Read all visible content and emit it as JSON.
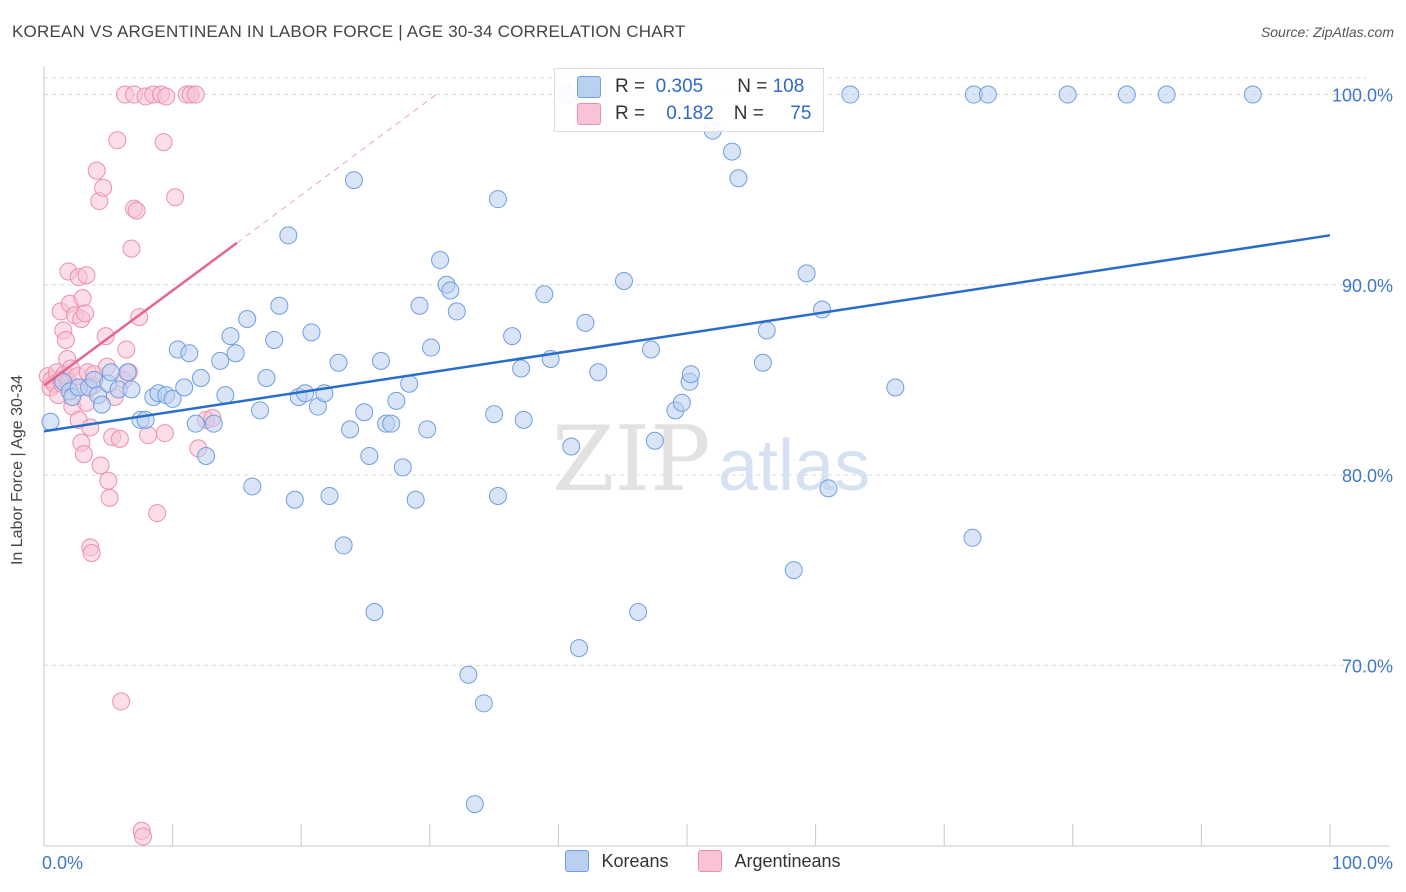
{
  "header": {
    "title": "KOREAN VS ARGENTINEAN IN LABOR FORCE | AGE 30-34 CORRELATION CHART",
    "source": "Source: ZipAtlas.com"
  },
  "legend": {
    "row1": {
      "r_label": "R =",
      "r_value": "0.305",
      "n_label": "N =",
      "n_value": "108"
    },
    "row2": {
      "r_label": "R =",
      "r_value": "0.182",
      "n_label": "N =",
      "n_value": "75"
    }
  },
  "watermark": {
    "zip": "ZIP",
    "atlas": "atlas"
  },
  "colors": {
    "blue_fill": "#b9d0f0",
    "blue_stroke": "#6f9fe0",
    "blue_line": "#2a6cca",
    "pink_fill": "#f8c3d4",
    "pink_stroke": "#ec8fae",
    "pink_line": "#e36690",
    "grid": "#d9d9d9",
    "tick_text": "#3e77c7"
  },
  "chart_data": {
    "type": "scatter",
    "title": "KOREAN VS ARGENTINEAN IN LABOR FORCE | AGE 30-34 CORRELATION CHART",
    "xlabel": "",
    "ylabel": "In Labor Force | Age 30-34",
    "xlim": [
      0,
      100
    ],
    "ylim": [
      60.5,
      101.5
    ],
    "x_tick_labels": [
      "0.0%",
      "100.0%"
    ],
    "y_ticks": [
      70,
      80,
      90,
      100
    ],
    "y_tick_labels": [
      "70.0%",
      "80.0%",
      "90.0%",
      "100.0%"
    ],
    "series": [
      {
        "name": "Koreans",
        "r": 0.305,
        "n": 108,
        "trend": {
          "x0": 0,
          "y0": 82.3,
          "x1": 100,
          "y1": 92.6
        },
        "points": [
          [
            0.5,
            82.8
          ],
          [
            1.5,
            84.9
          ],
          [
            2.0,
            84.4
          ],
          [
            2.2,
            84.1
          ],
          [
            2.7,
            84.6
          ],
          [
            3.5,
            84.6
          ],
          [
            3.9,
            85.0
          ],
          [
            4.2,
            84.2
          ],
          [
            4.5,
            83.7
          ],
          [
            5.0,
            84.8
          ],
          [
            5.2,
            85.4
          ],
          [
            5.8,
            84.5
          ],
          [
            6.5,
            85.4
          ],
          [
            6.8,
            84.5
          ],
          [
            7.5,
            82.9
          ],
          [
            7.9,
            82.9
          ],
          [
            8.5,
            84.1
          ],
          [
            8.9,
            84.3
          ],
          [
            9.5,
            84.2
          ],
          [
            10.0,
            84.0
          ],
          [
            10.4,
            86.6
          ],
          [
            10.9,
            84.6
          ],
          [
            11.3,
            86.4
          ],
          [
            11.8,
            82.7
          ],
          [
            12.2,
            85.1
          ],
          [
            12.6,
            81.0
          ],
          [
            13.2,
            82.7
          ],
          [
            13.7,
            86.0
          ],
          [
            14.1,
            84.2
          ],
          [
            14.5,
            87.3
          ],
          [
            14.9,
            86.4
          ],
          [
            15.8,
            88.2
          ],
          [
            16.2,
            79.4
          ],
          [
            16.8,
            83.4
          ],
          [
            17.3,
            85.1
          ],
          [
            17.9,
            87.1
          ],
          [
            18.3,
            88.9
          ],
          [
            19.0,
            92.6
          ],
          [
            19.5,
            78.7
          ],
          [
            19.8,
            84.1
          ],
          [
            20.3,
            84.3
          ],
          [
            20.8,
            87.5
          ],
          [
            21.3,
            83.6
          ],
          [
            21.8,
            84.3
          ],
          [
            22.2,
            78.9
          ],
          [
            22.9,
            85.9
          ],
          [
            23.3,
            76.3
          ],
          [
            23.8,
            82.4
          ],
          [
            24.1,
            95.5
          ],
          [
            24.9,
            83.3
          ],
          [
            25.3,
            81.0
          ],
          [
            25.7,
            72.8
          ],
          [
            26.2,
            86.0
          ],
          [
            26.6,
            82.7
          ],
          [
            27.0,
            82.7
          ],
          [
            27.4,
            83.9
          ],
          [
            27.9,
            80.4
          ],
          [
            28.4,
            84.8
          ],
          [
            28.9,
            78.7
          ],
          [
            29.2,
            88.9
          ],
          [
            29.8,
            82.4
          ],
          [
            30.1,
            86.7
          ],
          [
            30.8,
            91.3
          ],
          [
            31.3,
            90.0
          ],
          [
            31.6,
            89.7
          ],
          [
            32.1,
            88.6
          ],
          [
            33.0,
            69.5
          ],
          [
            33.5,
            62.7
          ],
          [
            34.2,
            68.0
          ],
          [
            35.0,
            83.2
          ],
          [
            35.3,
            94.5
          ],
          [
            35.3,
            78.9
          ],
          [
            36.4,
            87.3
          ],
          [
            37.1,
            85.6
          ],
          [
            37.3,
            82.9
          ],
          [
            38.9,
            89.5
          ],
          [
            39.4,
            86.1
          ],
          [
            40.6,
            100.0
          ],
          [
            41.0,
            81.5
          ],
          [
            41.6,
            70.9
          ],
          [
            42.1,
            88.0
          ],
          [
            43.1,
            85.4
          ],
          [
            45.1,
            90.2
          ],
          [
            46.2,
            72.8
          ],
          [
            47.2,
            86.6
          ],
          [
            47.5,
            81.8
          ],
          [
            49.1,
            83.4
          ],
          [
            49.6,
            83.8
          ],
          [
            50.2,
            84.9
          ],
          [
            50.3,
            85.3
          ],
          [
            52.0,
            98.1
          ],
          [
            53.5,
            97.0
          ],
          [
            54.0,
            95.6
          ],
          [
            55.9,
            85.9
          ],
          [
            56.2,
            87.6
          ],
          [
            58.3,
            75.0
          ],
          [
            59.3,
            90.6
          ],
          [
            60.5,
            88.7
          ],
          [
            61.0,
            79.3
          ],
          [
            62.7,
            100.0
          ],
          [
            66.2,
            84.6
          ],
          [
            72.2,
            76.7
          ],
          [
            72.3,
            100.0
          ],
          [
            73.4,
            100.0
          ],
          [
            79.6,
            100.0
          ],
          [
            84.2,
            100.0
          ],
          [
            87.3,
            100.0
          ],
          [
            94.0,
            100.0
          ]
        ]
      },
      {
        "name": "Argentineans",
        "r": 0.182,
        "n": 75,
        "trend": {
          "x0": 0,
          "y0": 84.7,
          "x1": 15,
          "y1": 92.2,
          "dash_x1": 30.5,
          "dash_y1": 100.0
        },
        "points": [
          [
            0.3,
            85.2
          ],
          [
            0.5,
            84.6
          ],
          [
            0.6,
            85.0
          ],
          [
            0.8,
            84.8
          ],
          [
            1.0,
            85.4
          ],
          [
            1.1,
            84.2
          ],
          [
            1.3,
            85.0
          ],
          [
            1.4,
            84.8
          ],
          [
            1.6,
            85.3
          ],
          [
            1.8,
            86.1
          ],
          [
            1.9,
            84.9
          ],
          [
            2.1,
            85.6
          ],
          [
            2.2,
            83.6
          ],
          [
            2.4,
            84.6
          ],
          [
            2.6,
            85.2
          ],
          [
            2.7,
            82.9
          ],
          [
            2.9,
            81.7
          ],
          [
            3.1,
            81.1
          ],
          [
            3.3,
            83.8
          ],
          [
            3.4,
            85.4
          ],
          [
            3.6,
            82.5
          ],
          [
            3.8,
            84.7
          ],
          [
            1.3,
            88.6
          ],
          [
            1.5,
            87.6
          ],
          [
            1.7,
            87.1
          ],
          [
            1.9,
            90.7
          ],
          [
            2.0,
            89.0
          ],
          [
            2.4,
            88.4
          ],
          [
            2.7,
            90.4
          ],
          [
            2.9,
            88.2
          ],
          [
            3.0,
            89.3
          ],
          [
            3.2,
            88.5
          ],
          [
            3.3,
            90.5
          ],
          [
            3.6,
            76.2
          ],
          [
            3.7,
            75.9
          ],
          [
            4.1,
            96.0
          ],
          [
            4.3,
            94.4
          ],
          [
            4.4,
            80.5
          ],
          [
            4.6,
            95.1
          ],
          [
            4.8,
            87.3
          ],
          [
            5.0,
            79.7
          ],
          [
            5.1,
            78.8
          ],
          [
            5.3,
            82.0
          ],
          [
            5.5,
            84.1
          ],
          [
            5.7,
            97.6
          ],
          [
            5.9,
            81.9
          ],
          [
            6.2,
            85.0
          ],
          [
            6.4,
            86.6
          ],
          [
            6.6,
            85.4
          ],
          [
            6.8,
            91.9
          ],
          [
            7.0,
            94.0
          ],
          [
            7.2,
            93.9
          ],
          [
            7.4,
            88.3
          ],
          [
            7.6,
            61.3
          ],
          [
            7.7,
            61.0
          ],
          [
            6.0,
            68.1
          ],
          [
            6.3,
            100.0
          ],
          [
            7.0,
            100.0
          ],
          [
            7.9,
            99.9
          ],
          [
            8.5,
            100.0
          ],
          [
            9.1,
            100.0
          ],
          [
            9.3,
            97.5
          ],
          [
            9.5,
            99.9
          ],
          [
            8.1,
            82.1
          ],
          [
            8.8,
            78.0
          ],
          [
            9.4,
            82.2
          ],
          [
            10.2,
            94.6
          ],
          [
            11.1,
            100.0
          ],
          [
            11.4,
            100.0
          ],
          [
            11.8,
            100.0
          ],
          [
            12.0,
            81.4
          ],
          [
            12.6,
            82.9
          ],
          [
            13.1,
            83.0
          ],
          [
            3.9,
            85.3
          ],
          [
            4.9,
            85.7
          ]
        ]
      }
    ]
  },
  "bottom_legend": [
    {
      "label": "Koreans"
    },
    {
      "label": "Argentineans"
    }
  ]
}
